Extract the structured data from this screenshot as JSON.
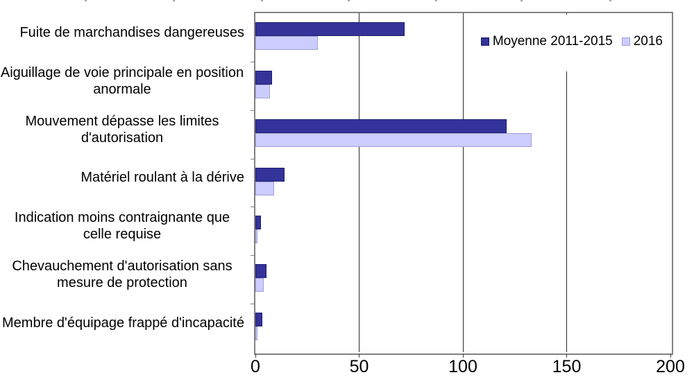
{
  "chart_data": {
    "type": "bar",
    "orientation": "horizontal",
    "title": "",
    "xlabel": "",
    "ylabel": "",
    "categories": [
      "Fuite de marchandises dangereuses",
      "Aiguillage de voie principale en position anormale",
      "Mouvement dépasse les limites d'autorisation",
      "Matériel roulant à la dérive",
      "Indication moins contraignante que celle requise",
      "Chevauchement d'autorisation sans mesure de protection",
      "Membre d'équipage frappé d'incapacité"
    ],
    "series": [
      {
        "name": "Moyenne 2011-2015",
        "color": "#333399",
        "border_color": "#1f1f70",
        "values": [
          72,
          8,
          121,
          14,
          2.6,
          5.2,
          3.4
        ]
      },
      {
        "name": "2016",
        "color": "#ccccff",
        "border_color": "#a0a0dc",
        "values": [
          30,
          7,
          133,
          9,
          1,
          4,
          1
        ]
      }
    ],
    "xlim": [
      0,
      200
    ],
    "xticks": [
      0,
      50,
      100,
      150,
      200
    ],
    "grid": true,
    "legend_position": "top-right",
    "plot_border_color": "#808080",
    "gridline_color": "#2b2b2b",
    "background_color": "#ffffff"
  }
}
